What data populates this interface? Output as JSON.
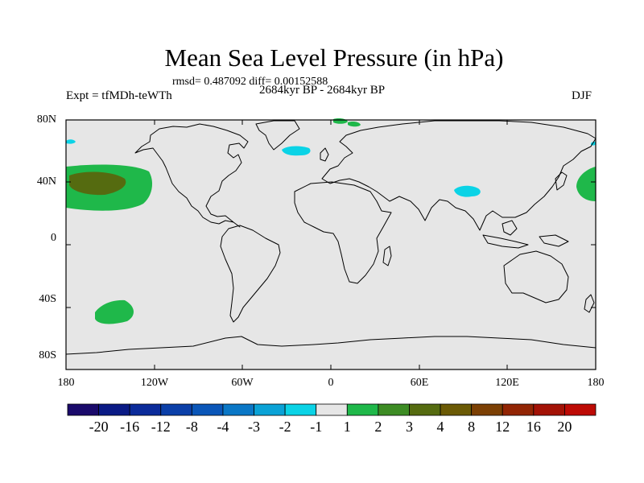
{
  "title": "Mean Sea Level Pressure (in hPa)",
  "stats": "rmsd= 0.487092 diff= 0.00152588",
  "experiment": "Expt = tfMDh-teWTh",
  "period": "2684kyr BP - 2684kyr BP",
  "season": "DJF",
  "lat_labels": [
    "80N",
    "40N",
    "0",
    "40S",
    "80S"
  ],
  "lon_labels": [
    "180",
    "120W",
    "60W",
    "0",
    "60E",
    "120E",
    "180"
  ],
  "colorbar": {
    "labels": [
      "-20",
      "-16",
      "-12",
      "-8",
      "-4",
      "-3",
      "-2",
      "-1",
      "1",
      "2",
      "3",
      "4",
      "8",
      "12",
      "16",
      "20"
    ],
    "colors": [
      "#1a0a6b",
      "#0a1a85",
      "#0b2b9a",
      "#0b3fa8",
      "#0a56b8",
      "#0a77c6",
      "#0aa2d6",
      "#0bd3e6",
      "#e6e6e6",
      "#1fb84a",
      "#3d8c24",
      "#556b10",
      "#6b5a05",
      "#7c4004",
      "#922504",
      "#a31206",
      "#bd0b05"
    ]
  },
  "anomalies": [
    {
      "name": "north-pacific-positive",
      "lon": -165,
      "lat": 36,
      "level": "2-3"
    },
    {
      "name": "north-pacific-core",
      "lon": -167,
      "lat": 37,
      "level": "3-4"
    },
    {
      "name": "south-pacific-positive",
      "lon": -140,
      "lat": -47,
      "level": "2-3"
    },
    {
      "name": "tibet-negative",
      "lon": 90,
      "lat": 32,
      "level": "-2 to -1"
    },
    {
      "name": "north-atlantic-negative",
      "lon": -20,
      "lat": 58,
      "level": "-2 to -1"
    },
    {
      "name": "west-pacific-positive",
      "lon": 172,
      "lat": 37,
      "level": "2-3"
    },
    {
      "name": "arctic-positive",
      "lon": 15,
      "lat": 80,
      "level": "2-3"
    }
  ]
}
